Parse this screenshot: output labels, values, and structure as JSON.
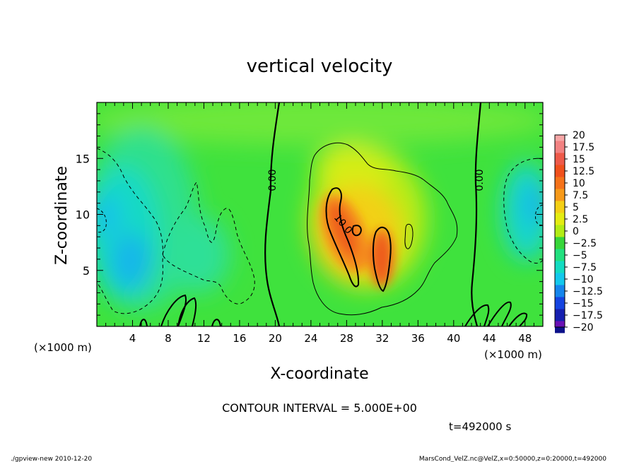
{
  "chart_data": {
    "type": "heatmap",
    "title": "vertical velocity",
    "xlabel": "X-coordinate",
    "ylabel": "Z-coordinate",
    "x_unit": "(×1000 m)",
    "y_unit": "(×1000 m)",
    "xlim": [
      0,
      50
    ],
    "ylim": [
      0,
      20
    ],
    "x_ticks": [
      4,
      8,
      12,
      16,
      20,
      24,
      28,
      32,
      36,
      40,
      44,
      48
    ],
    "y_ticks": [
      5,
      10,
      15
    ],
    "colorbar": {
      "labels": [
        "20",
        "17.5",
        "15",
        "12.5",
        "10",
        "7.5",
        "5",
        "2.5",
        "0",
        "−2.5",
        "−5",
        "−7.5",
        "−10",
        "−12.5",
        "−15",
        "−17.5",
        "−20"
      ],
      "colors": [
        "#f7a6a6",
        "#f28282",
        "#ee5a4a",
        "#f0501c",
        "#f5721a",
        "#f79a1a",
        "#f4cf15",
        "#e4ec12",
        "#b2ec15",
        "#37d63a",
        "#22e07f",
        "#13dcc2",
        "#13c8ec",
        "#1585ec",
        "#1544e0",
        "#1620b0",
        "#0c118a",
        "#6a11b5"
      ]
    },
    "contour_labels": [
      "0.00",
      "0.00",
      "10.0"
    ],
    "contour_interval": "CONTOUR INTERVAL = 5.000E+00",
    "time": "t=492000 s"
  },
  "footer": {
    "left": "./gpview-new  2010-12-20",
    "right": "MarsCond_VelZ.nc@VelZ,x=0:50000,z=0:20000,t=492000"
  }
}
